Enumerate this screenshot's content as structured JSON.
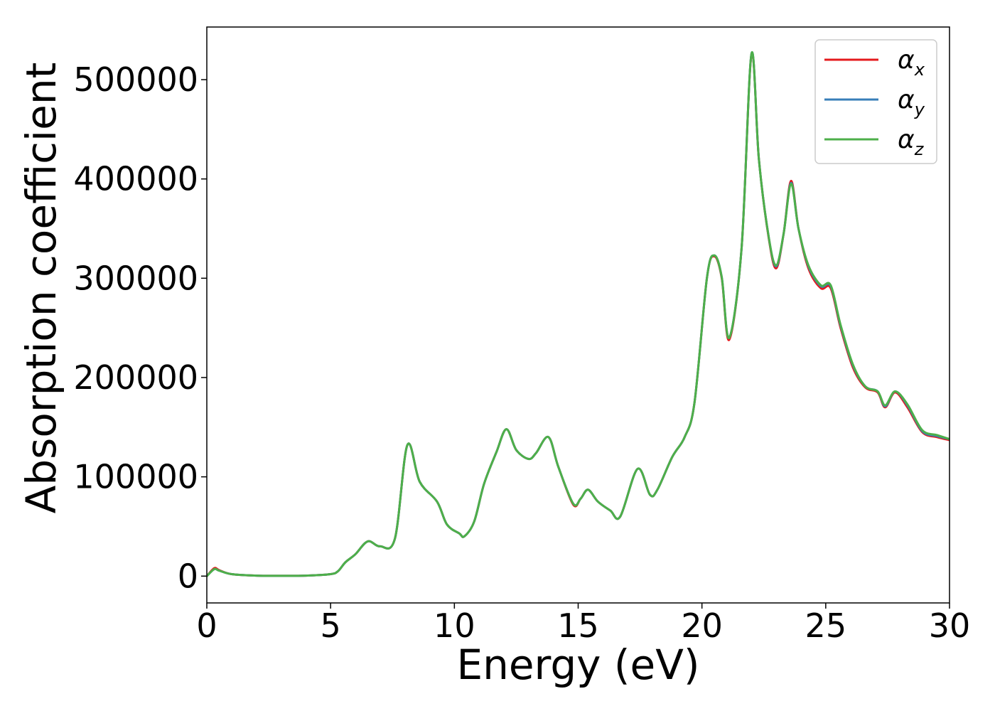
{
  "chart_data": {
    "type": "line",
    "title": "",
    "xlabel": "Energy (eV)",
    "ylabel": "Absorption coefficient",
    "xlim": [
      0,
      30
    ],
    "ylim": [
      -27000,
      553000
    ],
    "xticks": [
      0,
      5,
      10,
      15,
      20,
      25,
      30
    ],
    "xtick_labels": [
      "0",
      "5",
      "10",
      "15",
      "20",
      "25",
      "30"
    ],
    "yticks": [
      0,
      100000,
      200000,
      300000,
      400000,
      500000
    ],
    "ytick_labels": [
      "0",
      "100000",
      "200000",
      "300000",
      "400000",
      "500000"
    ],
    "grid": false,
    "legend_position": "top-right",
    "series": [
      {
        "name": "αx",
        "label_main": "α",
        "label_sub": "x",
        "color": "#e41a1c",
        "x": [
          0,
          0.3,
          0.5,
          1,
          2,
          3,
          4,
          5,
          5.3,
          5.6,
          6,
          6.5,
          7,
          7.6,
          8.1,
          8.6,
          9.3,
          9.7,
          10.2,
          10.4,
          10.8,
          11.2,
          11.7,
          12.1,
          12.5,
          13.0,
          13.3,
          13.8,
          14.2,
          14.8,
          15.1,
          15.4,
          15.8,
          16.3,
          16.7,
          17.4,
          17.9,
          18.2,
          18.8,
          19.3,
          19.7,
          20.2,
          20.5,
          20.8,
          21.1,
          21.6,
          22.0,
          22.3,
          22.7,
          23.0,
          23.3,
          23.6,
          23.9,
          24.3,
          24.8,
          25.2,
          25.6,
          26.1,
          26.6,
          27.1,
          27.4,
          27.8,
          28.3,
          28.9,
          29.5,
          30
        ],
        "y": [
          0,
          8000,
          6000,
          2000,
          500,
          300,
          500,
          2000,
          5000,
          14000,
          22000,
          35000,
          30000,
          38000,
          132000,
          95000,
          75000,
          52000,
          43000,
          40000,
          55000,
          93000,
          125000,
          148000,
          127000,
          118000,
          124000,
          140000,
          110000,
          72000,
          78000,
          87000,
          75000,
          66000,
          60000,
          108000,
          82000,
          87000,
          120000,
          140000,
          175000,
          300000,
          322000,
          300000,
          238000,
          330000,
          525000,
          420000,
          340000,
          310000,
          345000,
          398000,
          350000,
          310000,
          290000,
          290000,
          250000,
          210000,
          190000,
          185000,
          170000,
          185000,
          170000,
          145000,
          140000,
          137000
        ]
      },
      {
        "name": "αy",
        "label_main": "α",
        "label_sub": "y",
        "color": "#377eb8",
        "x": [
          0,
          0.3,
          0.5,
          1,
          2,
          3,
          4,
          5,
          5.3,
          5.6,
          6,
          6.5,
          7,
          7.6,
          8.1,
          8.6,
          9.3,
          9.7,
          10.2,
          10.4,
          10.8,
          11.2,
          11.7,
          12.1,
          12.5,
          13.0,
          13.3,
          13.8,
          14.2,
          14.8,
          15.1,
          15.4,
          15.8,
          16.3,
          16.7,
          17.4,
          17.9,
          18.2,
          18.8,
          19.3,
          19.7,
          20.2,
          20.5,
          20.8,
          21.1,
          21.6,
          22.0,
          22.3,
          22.7,
          23.0,
          23.3,
          23.6,
          23.9,
          24.3,
          24.8,
          25.2,
          25.6,
          26.1,
          26.6,
          27.1,
          27.4,
          27.8,
          28.3,
          28.9,
          29.5,
          30
        ],
        "y": [
          0,
          7000,
          5500,
          2000,
          500,
          300,
          500,
          2000,
          5000,
          14000,
          22000,
          35000,
          30000,
          38000,
          132000,
          95000,
          75000,
          52000,
          43000,
          40000,
          55000,
          93000,
          125000,
          148000,
          127000,
          118000,
          124000,
          140000,
          110000,
          73000,
          78000,
          87000,
          75000,
          66000,
          60000,
          108000,
          82000,
          87000,
          120000,
          140000,
          175000,
          300000,
          323000,
          301000,
          240000,
          330000,
          526000,
          420000,
          341000,
          312000,
          345000,
          396000,
          350000,
          312000,
          292000,
          292000,
          252000,
          212000,
          191000,
          186000,
          171000,
          186000,
          172000,
          146000,
          141000,
          138000
        ]
      },
      {
        "name": "αz",
        "label_main": "α",
        "label_sub": "z",
        "color": "#4daf4a",
        "x": [
          0,
          0.3,
          0.5,
          1,
          2,
          3,
          4,
          5,
          5.3,
          5.6,
          6,
          6.5,
          7,
          7.6,
          8.1,
          8.6,
          9.3,
          9.7,
          10.2,
          10.4,
          10.8,
          11.2,
          11.7,
          12.1,
          12.5,
          13.0,
          13.3,
          13.8,
          14.2,
          14.8,
          15.1,
          15.4,
          15.8,
          16.3,
          16.7,
          17.4,
          17.9,
          18.2,
          18.8,
          19.3,
          19.7,
          20.2,
          20.5,
          20.8,
          21.1,
          21.6,
          22.0,
          22.3,
          22.7,
          23.0,
          23.3,
          23.6,
          23.9,
          24.3,
          24.8,
          25.2,
          25.6,
          26.1,
          26.6,
          27.1,
          27.4,
          27.8,
          28.3,
          28.9,
          29.5,
          30
        ],
        "y": [
          0,
          7000,
          5500,
          2000,
          500,
          300,
          500,
          2000,
          5000,
          14000,
          22000,
          35000,
          30000,
          38000,
          132000,
          95000,
          75000,
          52000,
          43000,
          40000,
          55000,
          93000,
          125000,
          148000,
          127000,
          118000,
          124000,
          140000,
          110000,
          73000,
          78000,
          87000,
          75000,
          66000,
          60000,
          108000,
          82000,
          87000,
          120000,
          140000,
          175000,
          300000,
          323000,
          301000,
          240000,
          330000,
          526000,
          420000,
          341000,
          313000,
          345000,
          395000,
          350000,
          313000,
          293000,
          293000,
          253000,
          213000,
          191000,
          186000,
          172000,
          186000,
          173000,
          147000,
          142000,
          138000
        ]
      }
    ]
  }
}
